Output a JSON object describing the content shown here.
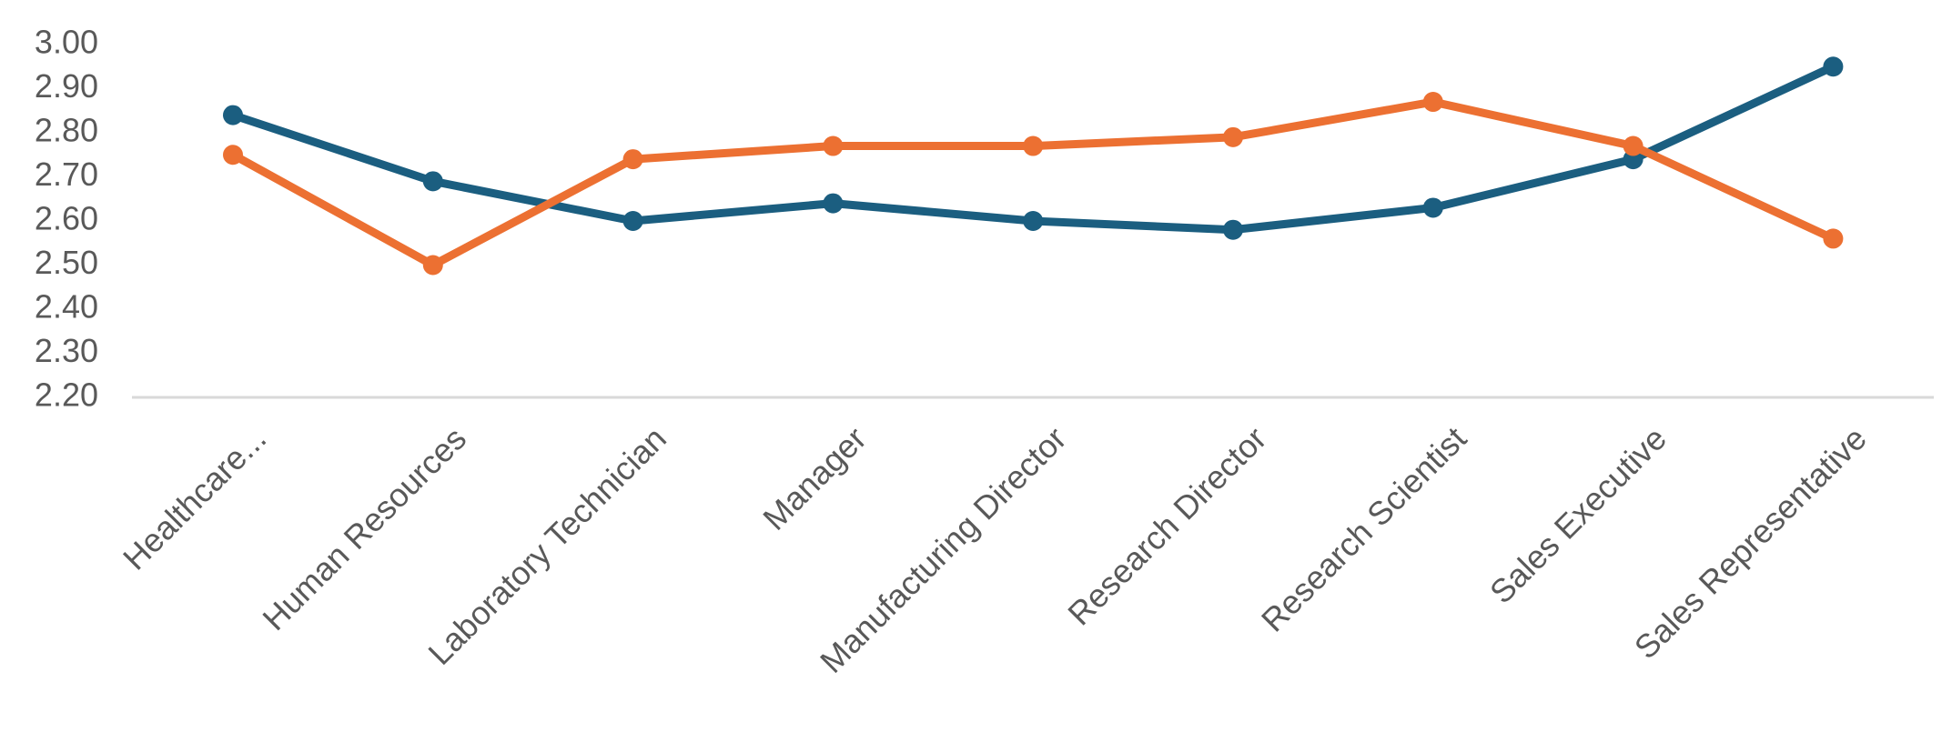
{
  "chart_data": {
    "type": "line",
    "title": "",
    "xlabel": "",
    "ylabel": "",
    "categories": [
      "Healthcare...",
      "Human Resources",
      "Laboratory Technician",
      "Manager",
      "Manufacturing Director",
      "Research Director",
      "Research Scientist",
      "Sales Executive",
      "Sales Representative"
    ],
    "yticks": [
      "2.20",
      "2.30",
      "2.40",
      "2.50",
      "2.60",
      "2.70",
      "2.80",
      "2.90",
      "3.00"
    ],
    "ylim": [
      2.2,
      3.0
    ],
    "grid": false,
    "legend": "none",
    "series": [
      {
        "color": "#1b5e80",
        "values": [
          2.84,
          2.69,
          2.6,
          2.64,
          2.6,
          2.58,
          2.63,
          2.74,
          2.95
        ]
      },
      {
        "color": "#ec7032",
        "values": [
          2.75,
          2.5,
          2.74,
          2.77,
          2.77,
          2.79,
          2.87,
          2.77,
          2.56
        ]
      }
    ]
  }
}
